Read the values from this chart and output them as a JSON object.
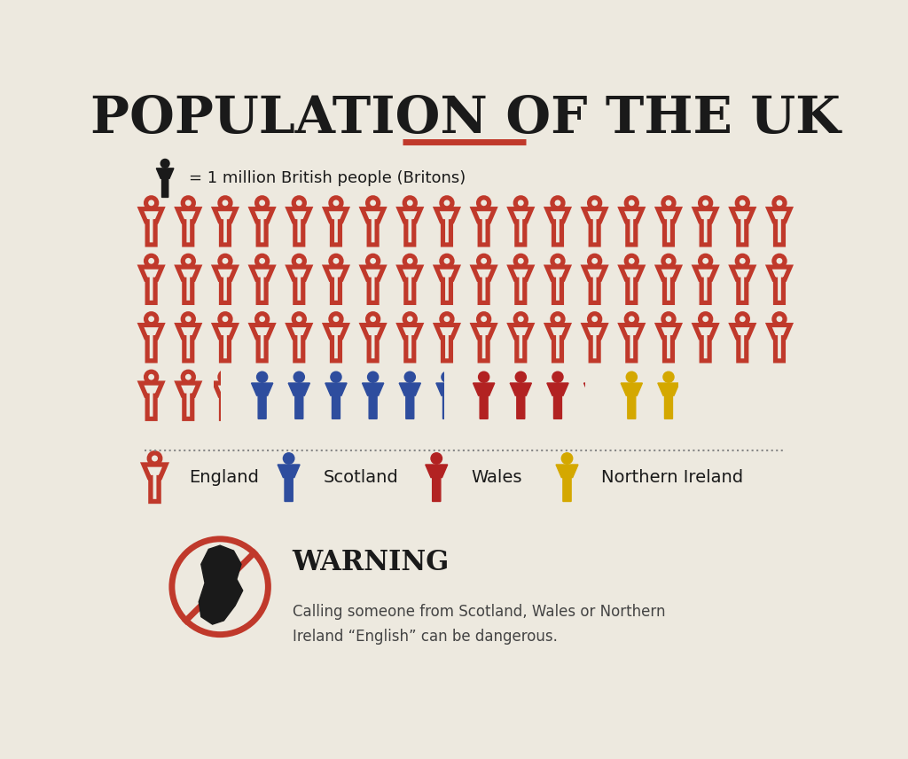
{
  "title": "POPULATION OF THE UK",
  "subtitle_line_color": "#c0392b",
  "bg_color": "#ede9df",
  "icon_label": "= 1 million British people (Britons)",
  "regions": [
    {
      "name": "England",
      "count": 56.3,
      "color": "#c0392b",
      "style": "outline"
    },
    {
      "name": "Scotland",
      "count": 5.4,
      "color": "#2e4d9e",
      "style": "solid"
    },
    {
      "name": "Wales",
      "count": 3.1,
      "color": "#b22222",
      "style": "solid"
    },
    {
      "name": "Northern Ireland",
      "count": 1.9,
      "color": "#d4a800",
      "style": "solid"
    }
  ],
  "icons_per_row": 18,
  "row_count": 4,
  "warning_text": "WARNING",
  "warning_sub": "Calling someone from Scotland, Wales or Northern\nIreland “English” can be dangerous.",
  "warning_color": "#c0392b",
  "title_fontsize": 42,
  "icon_fontsize": 95
}
